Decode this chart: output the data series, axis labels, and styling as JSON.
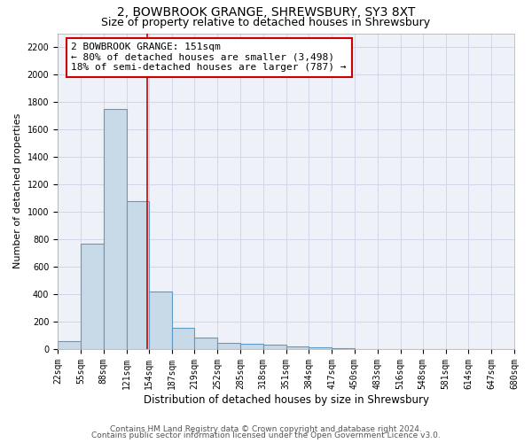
{
  "title": "2, BOWBROOK GRANGE, SHREWSBURY, SY3 8XT",
  "subtitle": "Size of property relative to detached houses in Shrewsbury",
  "xlabel": "Distribution of detached houses by size in Shrewsbury",
  "ylabel": "Number of detached properties",
  "bin_edges": [
    22,
    55,
    88,
    121,
    154,
    187,
    219,
    252,
    285,
    318,
    351,
    384,
    417,
    450,
    483,
    516,
    548,
    581,
    614,
    647,
    680
  ],
  "bar_heights": [
    60,
    770,
    1750,
    1080,
    420,
    155,
    85,
    45,
    40,
    30,
    20,
    15,
    5,
    3,
    2,
    2,
    1,
    1,
    0,
    0
  ],
  "bar_color": "#c8d9e8",
  "bar_edge_color": "#5a9cc5",
  "bar_edge_width": 0.8,
  "red_line_x": 151,
  "ylim": [
    0,
    2300
  ],
  "yticks": [
    0,
    200,
    400,
    600,
    800,
    1000,
    1200,
    1400,
    1600,
    1800,
    2000,
    2200
  ],
  "annotation_title": "2 BOWBROOK GRANGE: 151sqm",
  "annotation_line1": "← 80% of detached houses are smaller (3,498)",
  "annotation_line2": "18% of semi-detached houses are larger (787) →",
  "annotation_box_color": "#ffffff",
  "annotation_border_color": "#cc0000",
  "grid_color": "#d0d8e8",
  "background_color": "#eef2f8",
  "footer_line1": "Contains HM Land Registry data © Crown copyright and database right 2024.",
  "footer_line2": "Contains public sector information licensed under the Open Government Licence v3.0.",
  "title_fontsize": 10,
  "subtitle_fontsize": 9,
  "xlabel_fontsize": 8.5,
  "ylabel_fontsize": 8,
  "tick_fontsize": 7,
  "footer_fontsize": 6.5,
  "annot_fontsize": 8
}
